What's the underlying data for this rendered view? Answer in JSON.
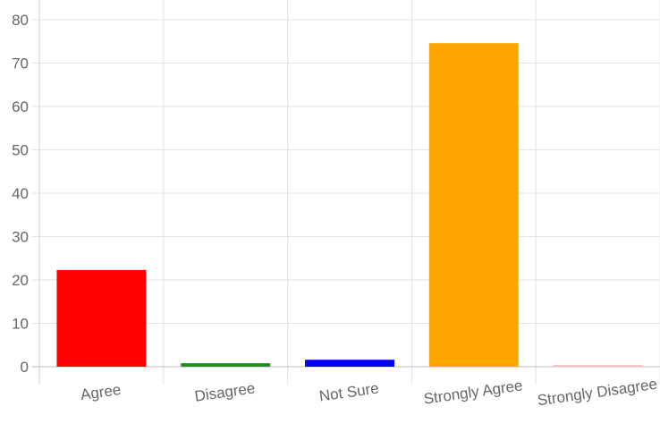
{
  "chart_data": {
    "type": "bar",
    "title": "",
    "xlabel": "",
    "ylabel": "",
    "categories": [
      "Agree",
      "Disagree",
      "Not Sure",
      "Strongly Agree",
      "Strongly Disagree"
    ],
    "values": [
      22.3,
      0.8,
      1.6,
      74.6,
      0.4
    ],
    "colors": [
      "#ff0000",
      "#228b22",
      "#0000ff",
      "#ffa500",
      "#f4c2c2"
    ],
    "ylim": [
      0,
      80
    ],
    "yticks": [
      0,
      10,
      20,
      30,
      40,
      50,
      60,
      70,
      80
    ],
    "grid": true,
    "legend": "none"
  }
}
